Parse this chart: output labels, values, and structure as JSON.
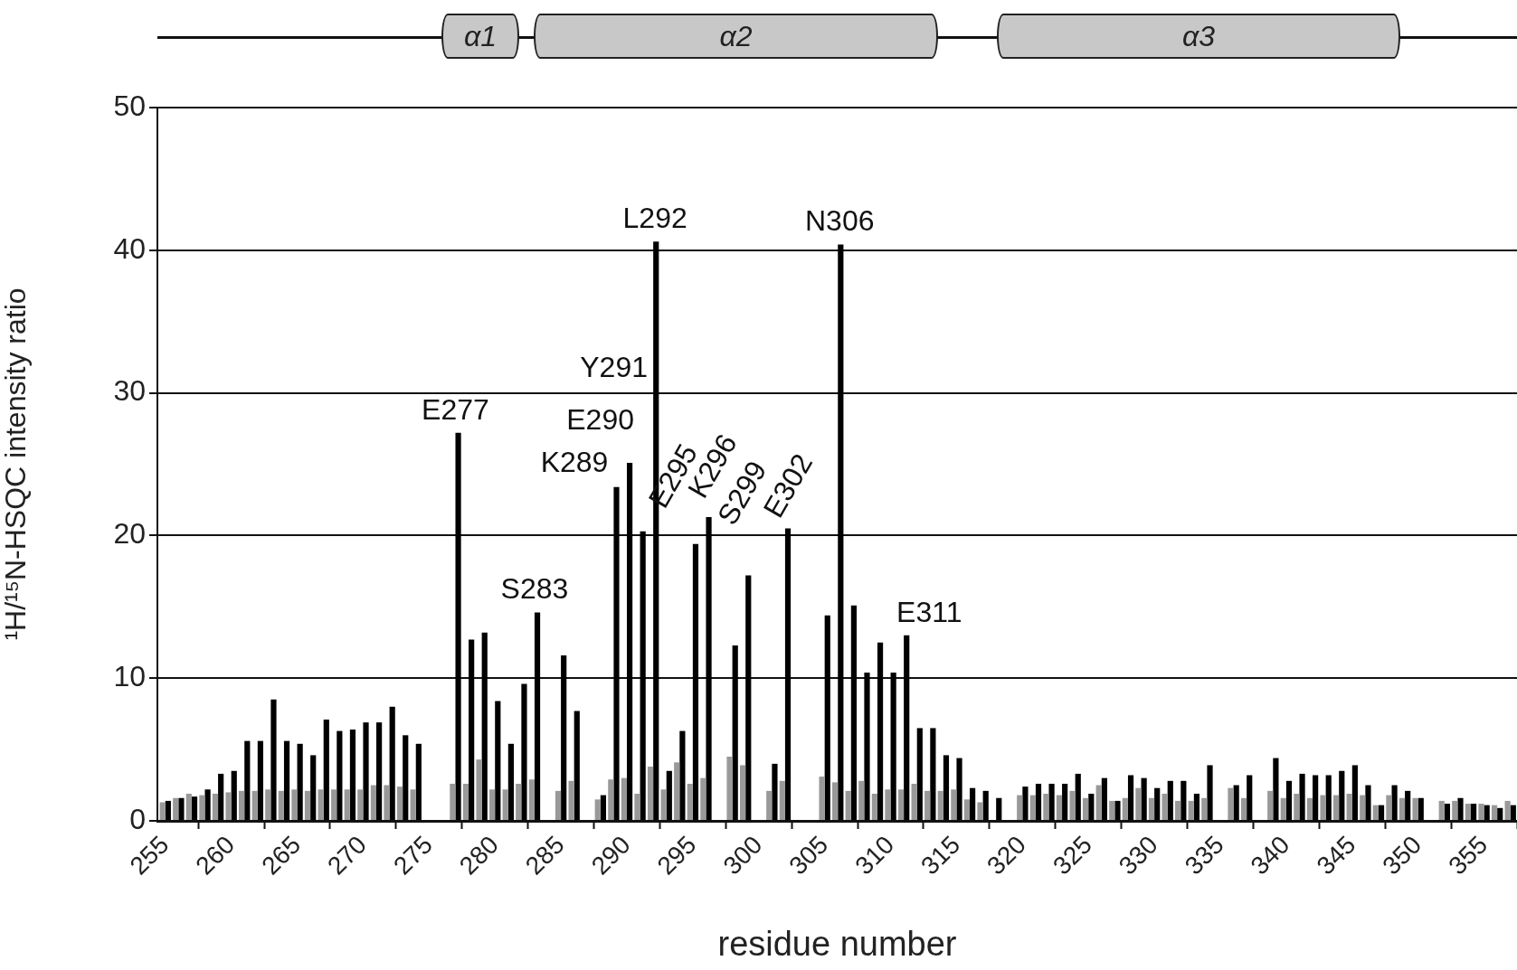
{
  "chart_data": {
    "type": "bar",
    "xlabel": "residue number",
    "ylabel": "¹H/¹⁵N-HSQC intensity ratio",
    "x": [
      255,
      256,
      257,
      258,
      259,
      260,
      261,
      262,
      263,
      264,
      265,
      266,
      267,
      268,
      269,
      270,
      271,
      272,
      273,
      274,
      275,
      276,
      277,
      278,
      279,
      280,
      281,
      282,
      283,
      284,
      285,
      286,
      287,
      288,
      289,
      290,
      291,
      292,
      293,
      294,
      295,
      296,
      297,
      298,
      299,
      300,
      301,
      302,
      303,
      304,
      305,
      306,
      307,
      308,
      309,
      310,
      311,
      312,
      313,
      314,
      315,
      316,
      317,
      318,
      319,
      320,
      321,
      322,
      323,
      324,
      325,
      326,
      327,
      328,
      329,
      330,
      331,
      332,
      333,
      334,
      335,
      336,
      337,
      338,
      339,
      340,
      341,
      342,
      343,
      344,
      345,
      346,
      347,
      348,
      349,
      350,
      351,
      352,
      353,
      354,
      355,
      356,
      357
    ],
    "series": [
      {
        "color": "#999999",
        "values": [
          1.3,
          1.6,
          1.9,
          1.8,
          1.9,
          2.0,
          2.1,
          2.1,
          2.2,
          2.1,
          2.2,
          2.1,
          2.2,
          2.2,
          2.2,
          2.2,
          2.5,
          2.5,
          2.4,
          2.2,
          null,
          null,
          2.6,
          2.6,
          4.3,
          2.2,
          2.2,
          2.6,
          2.9,
          null,
          2.1,
          2.8,
          null,
          1.5,
          2.9,
          3.0,
          1.9,
          3.8,
          2.2,
          4.1,
          2.6,
          3.0,
          null,
          4.5,
          3.9,
          null,
          2.1,
          2.8,
          null,
          null,
          3.1,
          2.7,
          2.1,
          2.8,
          1.9,
          2.2,
          2.2,
          2.6,
          2.1,
          2.1,
          2.2,
          1.5,
          1.3,
          null,
          null,
          1.8,
          1.8,
          1.9,
          1.8,
          2.1,
          1.6,
          2.5,
          1.4,
          1.6,
          2.3,
          1.6,
          1.9,
          1.4,
          1.4,
          1.6,
          null,
          2.3,
          1.6,
          null,
          2.1,
          1.6,
          1.9,
          1.6,
          1.8,
          1.8,
          1.9,
          1.8,
          1.1,
          1.8,
          1.6,
          1.6,
          null,
          1.4,
          1.4,
          1.2,
          1.2,
          1.1,
          1.4
        ]
      },
      {
        "color": "#000000",
        "values": [
          1.4,
          1.6,
          1.7,
          2.2,
          3.3,
          3.5,
          5.6,
          5.6,
          8.5,
          5.6,
          5.4,
          4.6,
          7.1,
          6.3,
          6.4,
          6.9,
          6.9,
          8.0,
          6.0,
          5.4,
          null,
          null,
          27.2,
          12.7,
          13.2,
          8.4,
          5.4,
          9.6,
          14.6,
          null,
          11.6,
          7.7,
          null,
          1.8,
          23.4,
          25.1,
          20.3,
          40.6,
          3.5,
          6.3,
          19.4,
          21.3,
          null,
          12.3,
          17.2,
          null,
          4.0,
          20.5,
          null,
          null,
          14.4,
          40.4,
          15.1,
          10.4,
          12.5,
          10.4,
          13.0,
          6.5,
          6.5,
          4.6,
          4.4,
          2.3,
          2.1,
          1.6,
          null,
          2.4,
          2.6,
          2.6,
          2.6,
          3.3,
          1.9,
          3.0,
          1.4,
          3.2,
          3.0,
          2.3,
          2.8,
          2.8,
          1.9,
          3.9,
          null,
          2.5,
          3.2,
          null,
          4.4,
          2.8,
          3.3,
          3.2,
          3.2,
          3.5,
          3.9,
          2.5,
          1.1,
          2.5,
          2.1,
          1.6,
          null,
          1.2,
          1.6,
          1.2,
          1.1,
          0.9,
          1.1
        ]
      }
    ],
    "xlim": [
      254.4,
      357.5
    ],
    "xticks": [
      255,
      260,
      265,
      270,
      275,
      280,
      285,
      290,
      295,
      300,
      305,
      310,
      315,
      320,
      325,
      330,
      335,
      340,
      345,
      350,
      355
    ],
    "ylim": [
      0,
      50
    ],
    "yticks": [
      0,
      10,
      20,
      30,
      40,
      50
    ],
    "grid": "y",
    "legend": false,
    "annotations": [
      "α1",
      "α2",
      "α3",
      {
        "text": "E277",
        "x": 277,
        "y": 27.2
      },
      {
        "text": "S283",
        "x": 283,
        "y": 14.6
      },
      {
        "text": "K289",
        "x": 289,
        "y": 23.4
      },
      {
        "text": "E290",
        "x": 290,
        "y": 25.1
      },
      "Y291",
      {
        "text": "L292",
        "x": 292,
        "y": 40.6
      },
      {
        "text": "E295",
        "x": 295,
        "y": 19.4
      },
      {
        "text": "K296",
        "x": 296,
        "y": 21.3
      },
      {
        "text": "S299",
        "x": 299,
        "y": 17.2
      },
      {
        "text": "E302",
        "x": 302,
        "y": 20.5
      },
      {
        "text": "N306",
        "x": 306,
        "y": 40.4
      },
      {
        "text": "E311",
        "x": 311,
        "y": 13.0
      }
    ]
  }
}
